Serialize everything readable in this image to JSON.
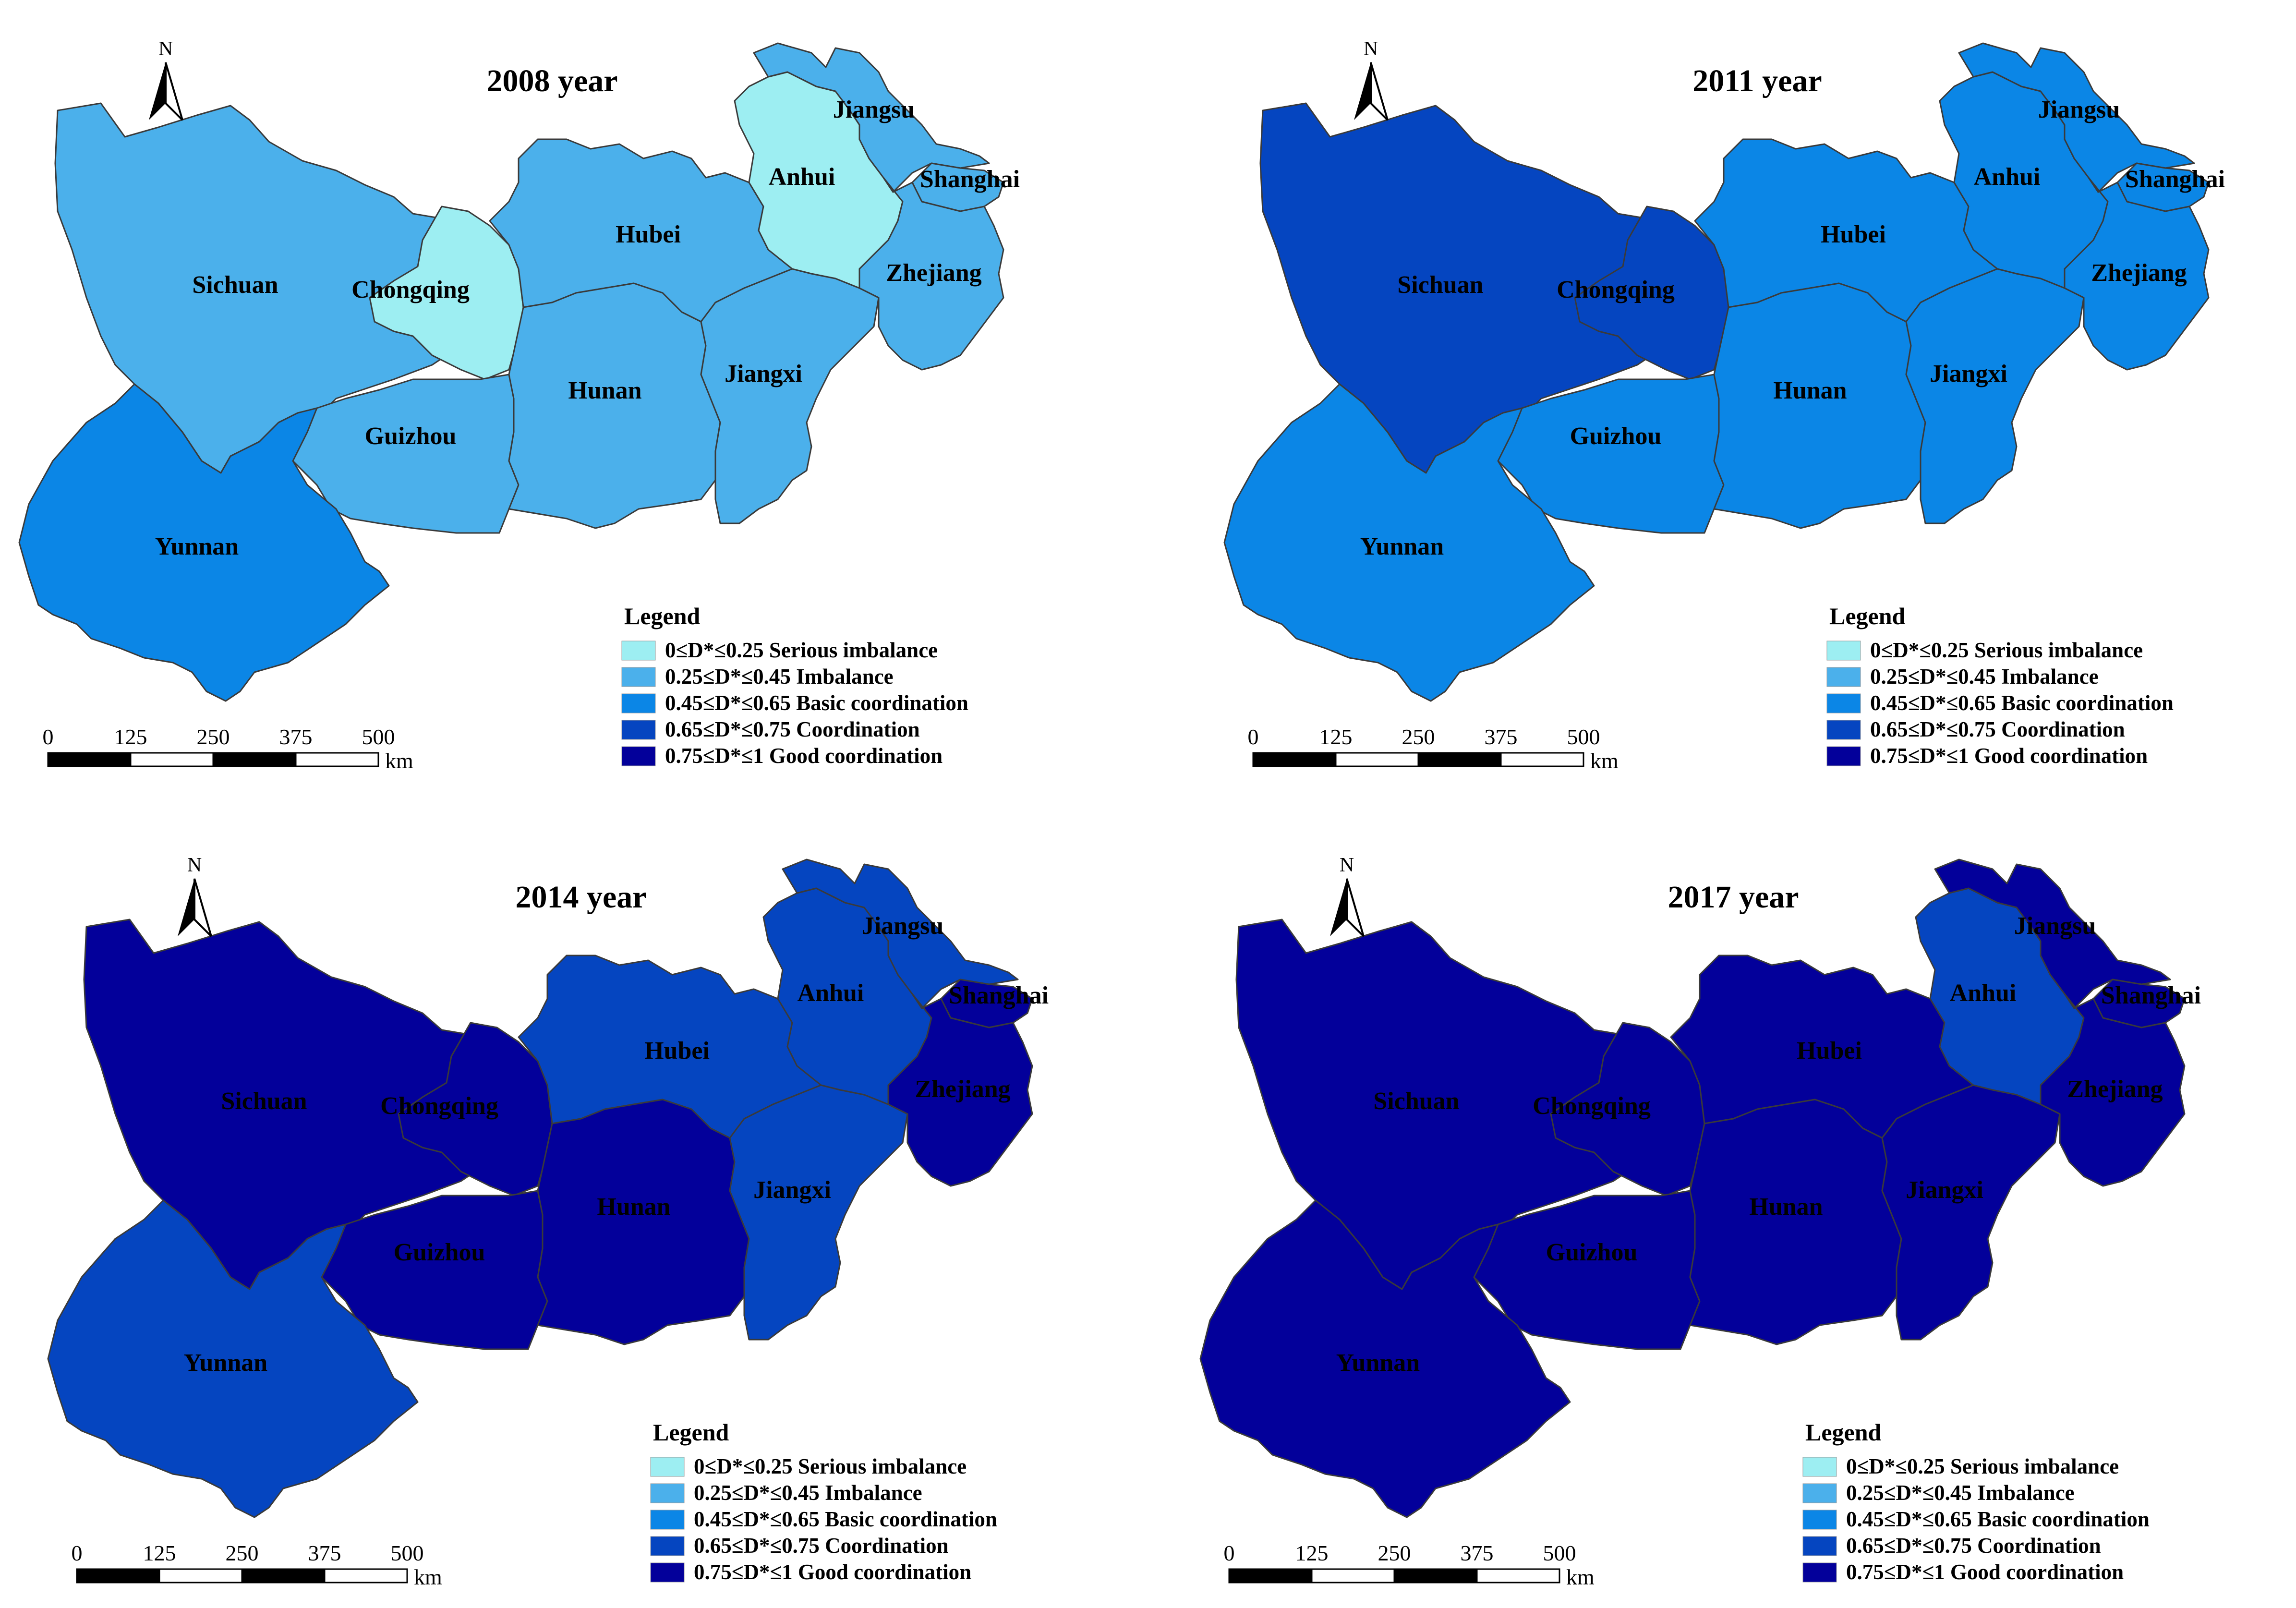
{
  "maps": [
    {
      "title": "2008 year",
      "provinces": [
        {
          "name": "Sichuan",
          "level": 1
        },
        {
          "name": "Chongqing",
          "level": 0
        },
        {
          "name": "Guizhou",
          "level": 1
        },
        {
          "name": "Yunnan",
          "level": 2
        },
        {
          "name": "Hubei",
          "level": 1
        },
        {
          "name": "Hunan",
          "level": 1
        },
        {
          "name": "Jiangxi",
          "level": 1
        },
        {
          "name": "Anhui",
          "level": 0
        },
        {
          "name": "Jiangsu",
          "level": 1
        },
        {
          "name": "Shanghai",
          "level": 1
        },
        {
          "name": "Zhejiang",
          "level": 1
        }
      ]
    },
    {
      "title": "2011 year",
      "provinces": [
        {
          "name": "Sichuan",
          "level": 3
        },
        {
          "name": "Chongqing",
          "level": 3
        },
        {
          "name": "Guizhou",
          "level": 2
        },
        {
          "name": "Yunnan",
          "level": 2
        },
        {
          "name": "Hubei",
          "level": 2
        },
        {
          "name": "Hunan",
          "level": 2
        },
        {
          "name": "Jiangxi",
          "level": 2
        },
        {
          "name": "Anhui",
          "level": 2
        },
        {
          "name": "Jiangsu",
          "level": 2
        },
        {
          "name": "Shanghai",
          "level": 2
        },
        {
          "name": "Zhejiang",
          "level": 2
        }
      ]
    },
    {
      "title": "2014 year",
      "provinces": [
        {
          "name": "Sichuan",
          "level": 4
        },
        {
          "name": "Chongqing",
          "level": 4
        },
        {
          "name": "Guizhou",
          "level": 4
        },
        {
          "name": "Yunnan",
          "level": 3
        },
        {
          "name": "Hubei",
          "level": 3
        },
        {
          "name": "Hunan",
          "level": 4
        },
        {
          "name": "Jiangxi",
          "level": 3
        },
        {
          "name": "Anhui",
          "level": 3
        },
        {
          "name": "Jiangsu",
          "level": 3
        },
        {
          "name": "Shanghai",
          "level": 4
        },
        {
          "name": "Zhejiang",
          "level": 4
        }
      ]
    },
    {
      "title": "2017 year",
      "provinces": [
        {
          "name": "Sichuan",
          "level": 4
        },
        {
          "name": "Chongqing",
          "level": 4
        },
        {
          "name": "Guizhou",
          "level": 4
        },
        {
          "name": "Yunnan",
          "level": 4
        },
        {
          "name": "Hubei",
          "level": 4
        },
        {
          "name": "Hunan",
          "level": 4
        },
        {
          "name": "Jiangxi",
          "level": 4
        },
        {
          "name": "Anhui",
          "level": 3
        },
        {
          "name": "Jiangsu",
          "level": 4
        },
        {
          "name": "Shanghai",
          "level": 4
        },
        {
          "name": "Zhejiang",
          "level": 4
        }
      ]
    }
  ],
  "legend": {
    "title": "Legend",
    "classes": [
      {
        "label": "0≤D*≤0.25 Serious imbalance",
        "color": "#9deef2"
      },
      {
        "label": "0.25≤D*≤0.45 Imbalance",
        "color": "#4bb0eb"
      },
      {
        "label": "0.45≤D*≤0.65 Basic coordination",
        "color": "#0b86e6"
      },
      {
        "label": "0.65≤D*≤0.75 Coordination",
        "color": "#0545c0"
      },
      {
        "label": "0.75≤D*≤1 Good coordination",
        "color": "#03009a"
      }
    ]
  },
  "scale_bar": {
    "ticks": [
      "0",
      "125",
      "250",
      "375",
      "500"
    ],
    "unit": "km"
  },
  "north_arrow": {
    "label": "N",
    "icon": "north-arrow-icon"
  },
  "colors": {
    "border": "#3a3a3a",
    "background": "#ffffff"
  }
}
